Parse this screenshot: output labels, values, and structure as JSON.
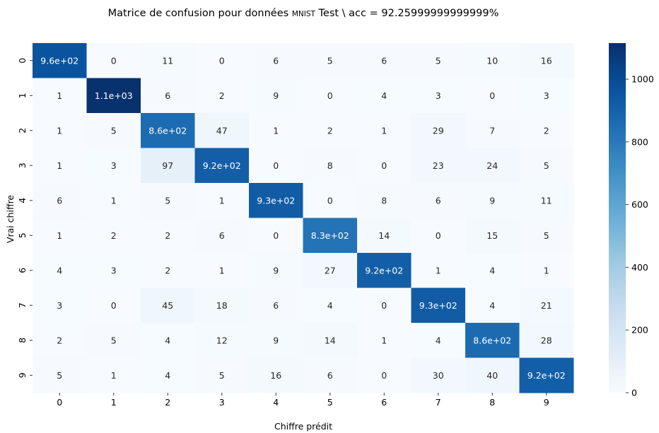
{
  "chart_data": {
    "type": "heatmap",
    "title_prefix": "Matrice de confusion pour données ",
    "title_dataset": "MNIST",
    "title_suffix": " Test \\ acc = 92.25999999999999%",
    "xlabel": "Chiffre prédit",
    "ylabel": "Vrai chiffre",
    "x_ticks": [
      "0",
      "1",
      "2",
      "3",
      "4",
      "5",
      "6",
      "7",
      "8",
      "9"
    ],
    "y_ticks": [
      "0",
      "1",
      "2",
      "3",
      "4",
      "5",
      "6",
      "7",
      "8",
      "9"
    ],
    "colormap": "Blues",
    "vmin": 0,
    "vmax": 1115,
    "colorbar_ticks": [
      0,
      200,
      400,
      600,
      800,
      1000
    ],
    "values": [
      [
        962,
        0,
        11,
        0,
        6,
        5,
        6,
        5,
        10,
        16
      ],
      [
        1,
        1107,
        6,
        2,
        9,
        0,
        4,
        3,
        0,
        3
      ],
      [
        1,
        5,
        856,
        47,
        1,
        2,
        1,
        29,
        7,
        2
      ],
      [
        1,
        3,
        97,
        917,
        0,
        8,
        0,
        23,
        24,
        5
      ],
      [
        6,
        1,
        5,
        1,
        928,
        0,
        8,
        6,
        9,
        11
      ],
      [
        1,
        2,
        2,
        6,
        0,
        826,
        14,
        0,
        15,
        5
      ],
      [
        4,
        3,
        2,
        1,
        9,
        27,
        915,
        1,
        4,
        1
      ],
      [
        3,
        0,
        45,
        18,
        6,
        4,
        0,
        926,
        4,
        21
      ],
      [
        2,
        5,
        4,
        12,
        9,
        14,
        1,
        4,
        863,
        28
      ],
      [
        5,
        1,
        4,
        5,
        16,
        6,
        0,
        30,
        40,
        916
      ]
    ],
    "annotations": [
      [
        "9.6e+02",
        "0",
        "11",
        "0",
        "6",
        "5",
        "6",
        "5",
        "10",
        "16"
      ],
      [
        "1",
        "1.1e+03",
        "6",
        "2",
        "9",
        "0",
        "4",
        "3",
        "0",
        "3"
      ],
      [
        "1",
        "5",
        "8.6e+02",
        "47",
        "1",
        "2",
        "1",
        "29",
        "7",
        "2"
      ],
      [
        "1",
        "3",
        "97",
        "9.2e+02",
        "0",
        "8",
        "0",
        "23",
        "24",
        "5"
      ],
      [
        "6",
        "1",
        "5",
        "1",
        "9.3e+02",
        "0",
        "8",
        "6",
        "9",
        "11"
      ],
      [
        "1",
        "2",
        "2",
        "6",
        "0",
        "8.3e+02",
        "14",
        "0",
        "15",
        "5"
      ],
      [
        "4",
        "3",
        "2",
        "1",
        "9",
        "27",
        "9.2e+02",
        "1",
        "4",
        "1"
      ],
      [
        "3",
        "0",
        "45",
        "18",
        "6",
        "4",
        "0",
        "9.3e+02",
        "4",
        "21"
      ],
      [
        "2",
        "5",
        "4",
        "12",
        "9",
        "14",
        "1",
        "4",
        "8.6e+02",
        "28"
      ],
      [
        "5",
        "1",
        "4",
        "5",
        "16",
        "6",
        "0",
        "30",
        "40",
        "9.2e+02"
      ]
    ]
  }
}
